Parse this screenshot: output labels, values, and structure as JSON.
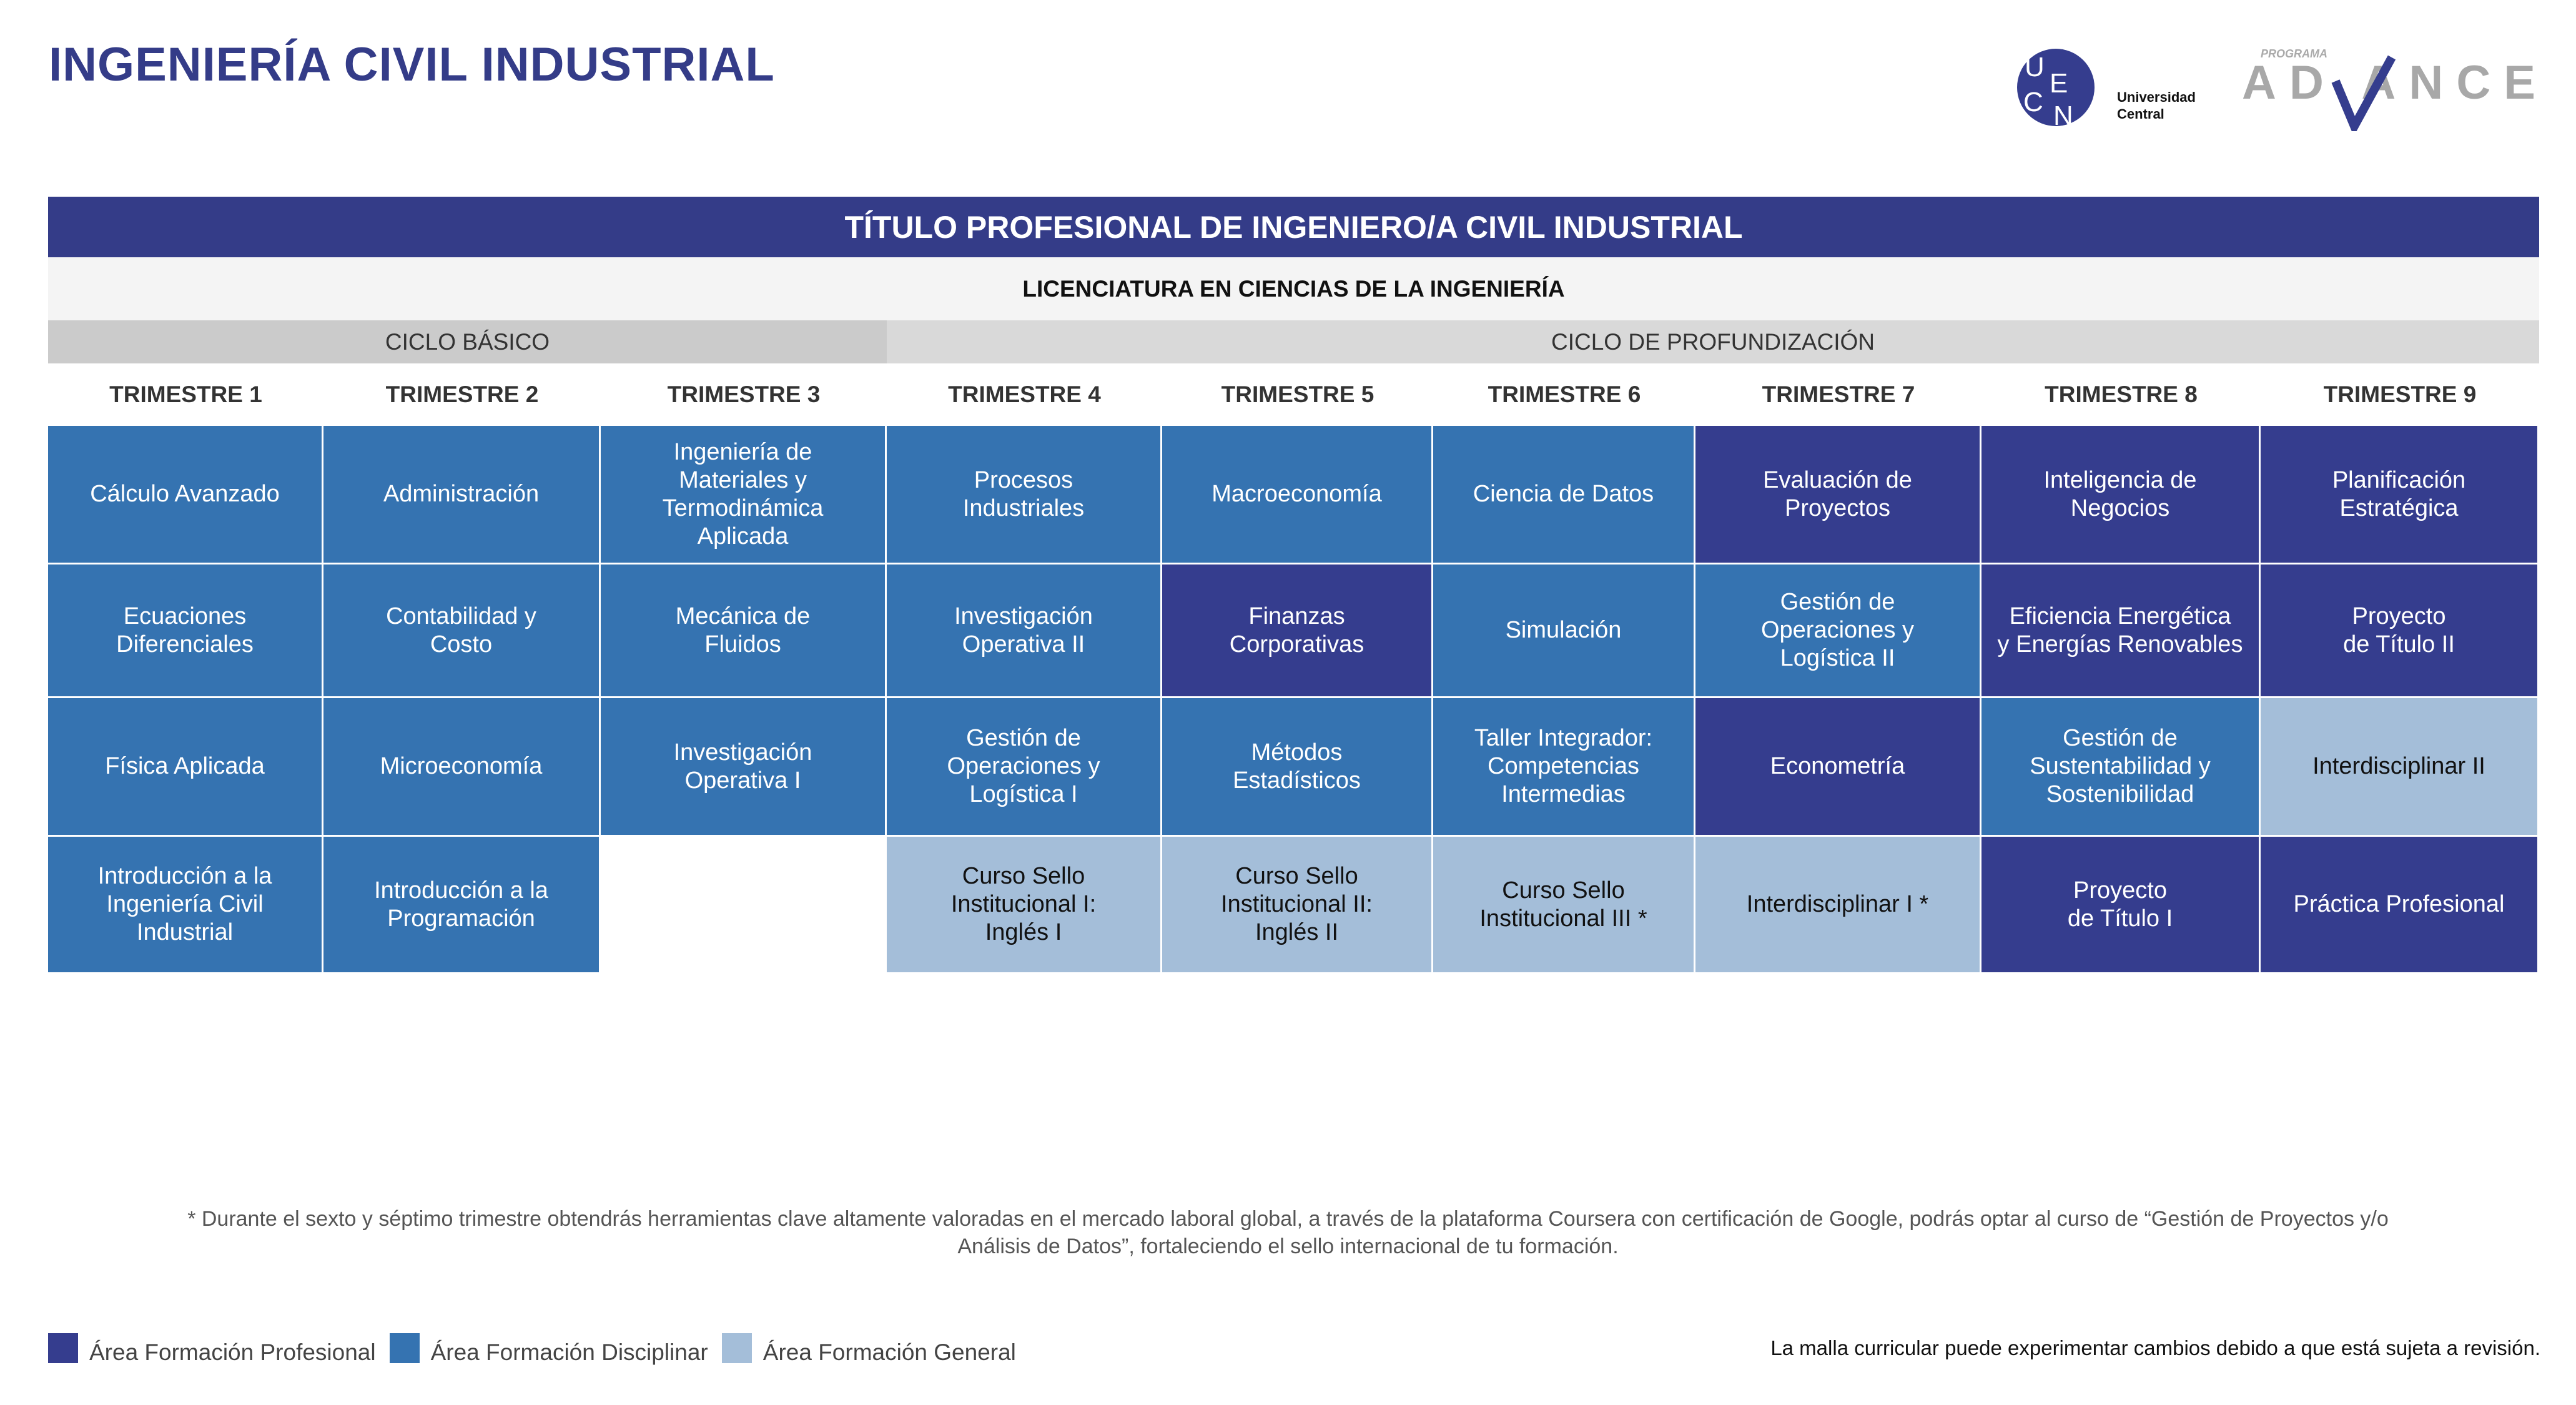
{
  "header": {
    "title": "INGENIERÍA CIVIL INDUSTRIAL",
    "logo_ucen": {
      "letters": "UCEN",
      "text_line1": "Universidad",
      "text_line2": "Central"
    },
    "logo_advance": {
      "small": "PROGRAMA",
      "word": "ADVANCE"
    }
  },
  "colors": {
    "p": "#353d8e",
    "d": "#3573b1",
    "g": "#a4bed9",
    "title": "#343c88"
  },
  "table": {
    "title": "TÍTULO PROFESIONAL DE INGENIERO/A CIVIL INDUSTRIAL",
    "licenciatura": "LICENCIATURA EN CIENCIAS DE LA INGENIERÍA",
    "cycles": [
      "CICLO BÁSICO",
      "CICLO DE PROFUNDIZACIÓN"
    ],
    "trimestres": [
      {
        "label": "TRIMESTRE 1",
        "courses": [
          {
            "name": "Cálculo Avanzado",
            "area": "d"
          },
          {
            "name": "Ecuaciones\nDiferenciales",
            "area": "d"
          },
          {
            "name": "Física Aplicada",
            "area": "d"
          },
          {
            "name": "Introducción a la\nIngeniería Civil\nIndustrial",
            "area": "d"
          }
        ]
      },
      {
        "label": "TRIMESTRE 2",
        "courses": [
          {
            "name": "Administración",
            "area": "d"
          },
          {
            "name": "Contabilidad y\nCosto",
            "area": "d"
          },
          {
            "name": "Microeconomía",
            "area": "d"
          },
          {
            "name": "Introducción a la\nProgramación",
            "area": "d"
          }
        ]
      },
      {
        "label": "TRIMESTRE 3",
        "courses": [
          {
            "name": "Ingeniería de\nMateriales y\nTermodinámica\nAplicada",
            "area": "d"
          },
          {
            "name": "Mecánica de\nFluidos",
            "area": "d"
          },
          {
            "name": "Investigación\nOperativa I",
            "area": "d"
          },
          {
            "name": "",
            "area": "empty"
          }
        ]
      },
      {
        "label": "TRIMESTRE 4",
        "courses": [
          {
            "name": "Procesos\nIndustriales",
            "area": "d"
          },
          {
            "name": "Investigación\nOperativa II",
            "area": "d"
          },
          {
            "name": "Gestión de\nOperaciones y\nLogística I",
            "area": "d"
          },
          {
            "name": "Curso Sello\nInstitucional I:\nInglés I",
            "area": "g"
          }
        ]
      },
      {
        "label": "TRIMESTRE 5",
        "courses": [
          {
            "name": "Macroeconomía",
            "area": "d"
          },
          {
            "name": "Finanzas\nCorporativas",
            "area": "p"
          },
          {
            "name": "Métodos\nEstadísticos",
            "area": "d"
          },
          {
            "name": "Curso Sello\nInstitucional II:\nInglés II",
            "area": "g"
          }
        ]
      },
      {
        "label": "TRIMESTRE 6",
        "courses": [
          {
            "name": "Ciencia de Datos",
            "area": "d"
          },
          {
            "name": "Simulación",
            "area": "d"
          },
          {
            "name": "Taller Integrador:\nCompetencias\nIntermedias",
            "area": "d"
          },
          {
            "name": "Curso Sello\nInstitucional III *",
            "area": "g"
          }
        ]
      },
      {
        "label": "TRIMESTRE 7",
        "courses": [
          {
            "name": "Evaluación de\nProyectos",
            "area": "p"
          },
          {
            "name": "Gestión de\nOperaciones y\nLogística II",
            "area": "d"
          },
          {
            "name": "Econometría",
            "area": "p"
          },
          {
            "name": "Interdisciplinar I *",
            "area": "g"
          }
        ]
      },
      {
        "label": "TRIMESTRE 8",
        "courses": [
          {
            "name": "Inteligencia de\nNegocios",
            "area": "p"
          },
          {
            "name": "Eficiencia Energética\ny Energías Renovables",
            "area": "p"
          },
          {
            "name": "Gestión de\nSustentabilidad y\nSostenibilidad",
            "area": "d"
          },
          {
            "name": "Proyecto\nde Título I",
            "area": "p"
          }
        ]
      },
      {
        "label": "TRIMESTRE 9",
        "courses": [
          {
            "name": "Planificación\nEstratégica",
            "area": "p"
          },
          {
            "name": "Proyecto\nde Título II",
            "area": "p"
          },
          {
            "name": "Interdisciplinar II",
            "area": "g"
          },
          {
            "name": "Práctica Profesional",
            "area": "p"
          }
        ]
      }
    ]
  },
  "footnote": "* Durante el sexto y séptimo trimestre obtendrás herramientas clave altamente valoradas en el mercado laboral global, a través de la plataforma Coursera con certificación de Google, podrás optar al curso de “Gestión de Proyectos y/o Análisis de Datos”, fortaleciendo el sello internacional de tu formación.",
  "legend": [
    {
      "label": "Área Formación Profesional",
      "area": "p"
    },
    {
      "label": "Área Formación Disciplinar",
      "area": "d"
    },
    {
      "label": "Área Formación General",
      "area": "g"
    }
  ],
  "disclaimer": "La malla curricular puede experimentar cambios debido a que está sujeta a revisión."
}
